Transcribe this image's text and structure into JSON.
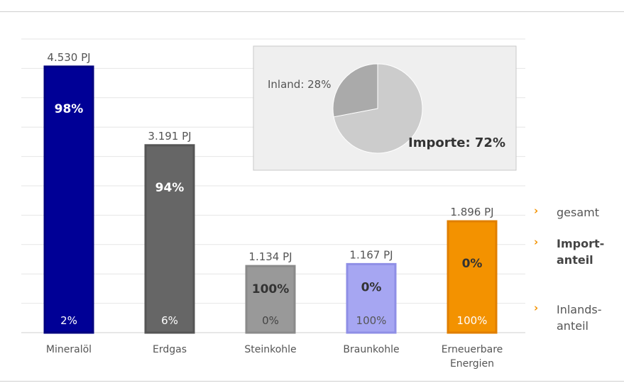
{
  "chart_data": {
    "type": "bar",
    "unit": "PJ",
    "categories": [
      "Mineralöl",
      "Erdgas",
      "Steinkohle",
      "Braunkohle",
      "Erneuerbare Energien"
    ],
    "category_lines": [
      [
        "Mineralöl"
      ],
      [
        "Erdgas"
      ],
      [
        "Steinkohle"
      ],
      [
        "Braunkohle"
      ],
      [
        "Erneuerbare",
        "Energien"
      ]
    ],
    "values": [
      4530,
      3191,
      1134,
      1167,
      1896
    ],
    "total_labels": [
      "4.530 PJ",
      "3.191 PJ",
      "1.134 PJ",
      "1.167 PJ",
      "1.896 PJ"
    ],
    "import_share_labels": [
      "98%",
      "94%",
      "100%",
      "0%",
      "0%"
    ],
    "domestic_share_labels": [
      "2%",
      "6%",
      "0%",
      "100%",
      "100%"
    ],
    "colors": [
      "#000096",
      "#666666",
      "#999999",
      "#a6a6f2",
      "#f39200"
    ],
    "border_colors": [
      "#000080",
      "#555555",
      "#8a8a8a",
      "#8f8fe6",
      "#e07f00"
    ],
    "ylim": [
      0,
      5000
    ],
    "grid": true,
    "inset_pie": {
      "type": "pie",
      "slices": [
        {
          "label": "Importe: 72%",
          "value": 72,
          "color": "#cccccc"
        },
        {
          "label": "Inland: 28%",
          "value": 28,
          "color": "#aaaaaa"
        }
      ]
    }
  },
  "legend": {
    "items": [
      {
        "text": "gesamt",
        "bold": false
      },
      {
        "text": "Import-\nanteil",
        "bold": true
      },
      {
        "text": "Inlands-\nanteil",
        "bold": false
      }
    ],
    "marker_color": "#f39200"
  }
}
